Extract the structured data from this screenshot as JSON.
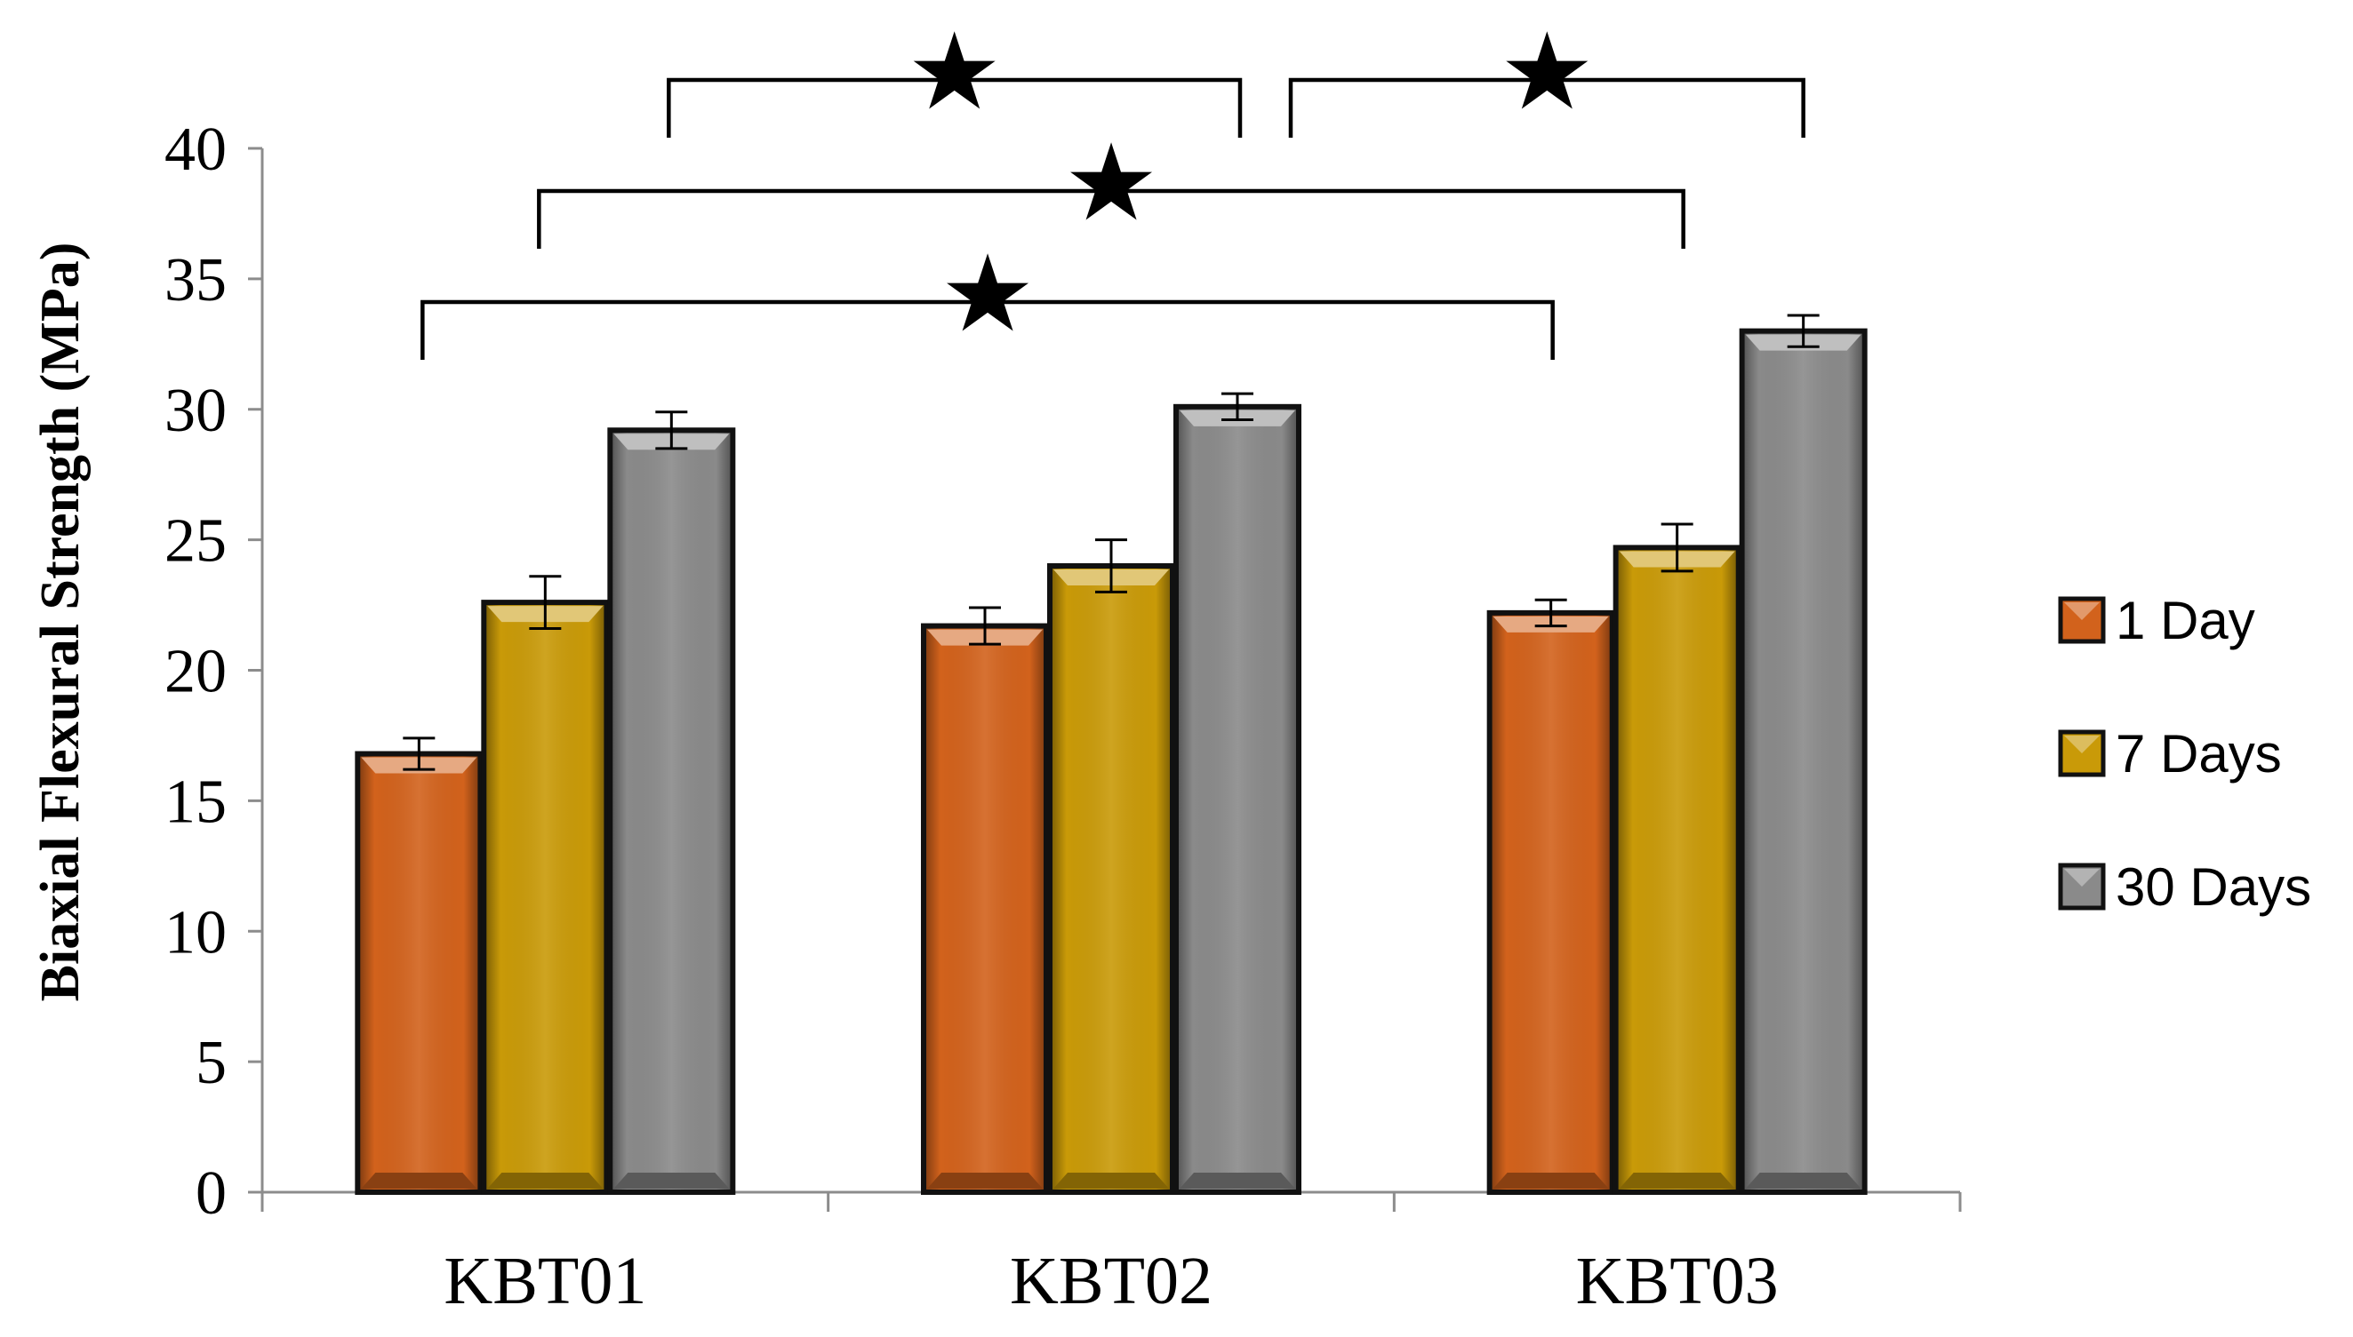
{
  "chart_data": {
    "type": "bar",
    "title": "",
    "xlabel": "",
    "ylabel": "Biaxial Flexural Strength (MPa)",
    "ylim": [
      0,
      40
    ],
    "yticks": [
      0,
      5,
      10,
      15,
      20,
      25,
      30,
      35,
      40
    ],
    "grid": false,
    "legend_position": "right",
    "categories": [
      "KBT01",
      "KBT02",
      "KBT03"
    ],
    "series": [
      {
        "name": "1 Day",
        "color": "#d2621c",
        "values": [
          16.8,
          21.7,
          22.2
        ],
        "errors": [
          0.6,
          0.7,
          0.5
        ]
      },
      {
        "name": "7 Days",
        "color": "#c99a08",
        "values": [
          22.6,
          24.0,
          24.7
        ],
        "errors": [
          1.0,
          1.0,
          0.9
        ]
      },
      {
        "name": "30 Days",
        "color": "#8a8a8a",
        "values": [
          29.2,
          30.1,
          33.0
        ],
        "errors": [
          0.7,
          0.5,
          0.6
        ]
      }
    ],
    "significance": [
      {
        "from": "KBT01 30 Days",
        "to": "KBT02 30 Days",
        "label": "★"
      },
      {
        "from": "KBT02 30 Days",
        "to": "KBT03 30 Days",
        "label": "★"
      },
      {
        "from": "KBT01 7 Days",
        "to": "KBT03 7 Days",
        "label": "★"
      },
      {
        "from": "KBT01 1 Day",
        "to": "KBT03 1 Day",
        "label": "★"
      }
    ]
  }
}
